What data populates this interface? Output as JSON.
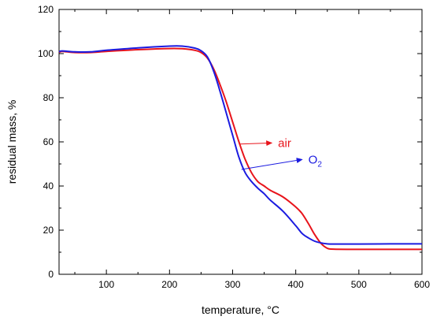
{
  "chart_data": {
    "type": "line",
    "xlabel": "temperature, °C",
    "ylabel": "residual mass, %",
    "xlim": [
      25,
      600
    ],
    "ylim": [
      0,
      120
    ],
    "xticks": [
      100,
      200,
      300,
      400,
      500,
      600
    ],
    "yticks": [
      0,
      20,
      40,
      60,
      80,
      100,
      120
    ],
    "grid": false,
    "series": [
      {
        "name": "air",
        "color": "#e8141b",
        "x": [
          25,
          30,
          50,
          75,
          100,
          150,
          200,
          220,
          240,
          250,
          260,
          270,
          280,
          290,
          300,
          310,
          320,
          330,
          340,
          350,
          360,
          380,
          400,
          410,
          420,
          430,
          440,
          450,
          460,
          500,
          550,
          600
        ],
        "y": [
          100.5,
          101.0,
          100.5,
          100.5,
          101.0,
          101.8,
          102.3,
          102.2,
          101.5,
          100.5,
          98.0,
          93.0,
          86.0,
          78.0,
          69.0,
          60.0,
          52.0,
          46.0,
          42.0,
          40.0,
          38.0,
          35.0,
          30.5,
          27.5,
          23.0,
          18.0,
          14.0,
          11.8,
          11.4,
          11.3,
          11.3,
          11.3
        ]
      },
      {
        "name": "O2",
        "color": "#1b1be0",
        "x": [
          25,
          30,
          50,
          75,
          100,
          150,
          200,
          220,
          240,
          250,
          260,
          270,
          280,
          290,
          300,
          310,
          320,
          330,
          340,
          350,
          360,
          380,
          400,
          410,
          420,
          430,
          440,
          450,
          460,
          500,
          550,
          600
        ],
        "y": [
          100.8,
          101.2,
          100.8,
          100.8,
          101.5,
          102.6,
          103.4,
          103.4,
          102.5,
          101.3,
          98.5,
          92.0,
          83.0,
          73.0,
          63.0,
          53.0,
          46.0,
          42.0,
          39.0,
          36.5,
          33.5,
          28.5,
          22.0,
          18.5,
          16.5,
          15.0,
          14.2,
          13.8,
          13.7,
          13.7,
          13.8,
          13.8
        ]
      }
    ],
    "annotations": [
      {
        "text": "air",
        "color": "#e8141b",
        "from": [
          312,
          59
        ],
        "to": [
          362,
          59.5
        ]
      },
      {
        "text": "O",
        "sub": "2",
        "color": "#1b1be0",
        "from": [
          314,
          47.5
        ],
        "to": [
          410,
          52
        ]
      }
    ]
  }
}
